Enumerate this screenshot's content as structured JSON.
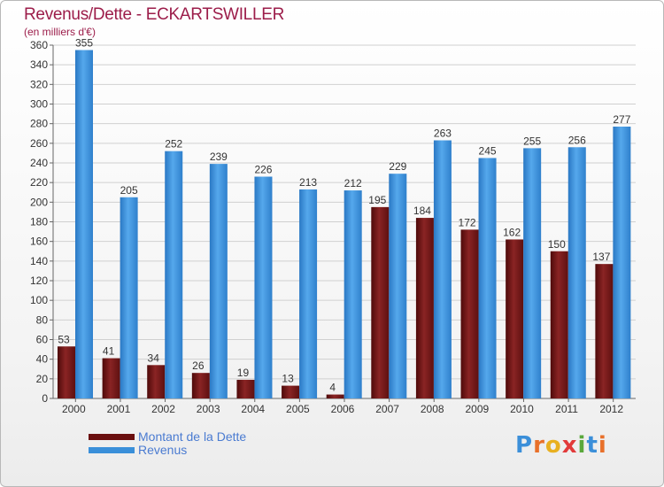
{
  "title": "Revenus/Dette - ECKARTSWILLER",
  "subtitle": "(en milliers d'€)",
  "logo": {
    "letters": [
      "P",
      "r",
      "o",
      "x",
      "i",
      "t",
      "i"
    ],
    "colors": [
      "#3b8fd9",
      "#e8702a",
      "#e8b020",
      "#e23a3a",
      "#5aa83c",
      "#3b8fd9",
      "#e8702a"
    ]
  },
  "colors": {
    "dette": "#7a1a1a",
    "revenus": "#3a8fd9",
    "grid": "#d0d0d0",
    "axis_text": "#333333",
    "label_text": "#333333"
  },
  "chart_data": {
    "type": "bar",
    "title": "Revenus/Dette - ECKARTSWILLER",
    "ylabel": "(en milliers d'€)",
    "ylim": [
      0,
      360
    ],
    "ytick_step": 20,
    "grid": true,
    "categories": [
      "2000",
      "2001",
      "2002",
      "2003",
      "2004",
      "2005",
      "2006",
      "2007",
      "2008",
      "2009",
      "2010",
      "2011",
      "2012"
    ],
    "series": [
      {
        "name": "Montant de la Dette",
        "key": "dette",
        "values": [
          53,
          41,
          34,
          26,
          19,
          13,
          4,
          195,
          184,
          172,
          162,
          150,
          137
        ]
      },
      {
        "name": "Revenus",
        "key": "revenus",
        "values": [
          355,
          205,
          252,
          239,
          226,
          213,
          212,
          229,
          263,
          245,
          255,
          256,
          277
        ]
      }
    ],
    "legend_position": "bottom-left"
  }
}
